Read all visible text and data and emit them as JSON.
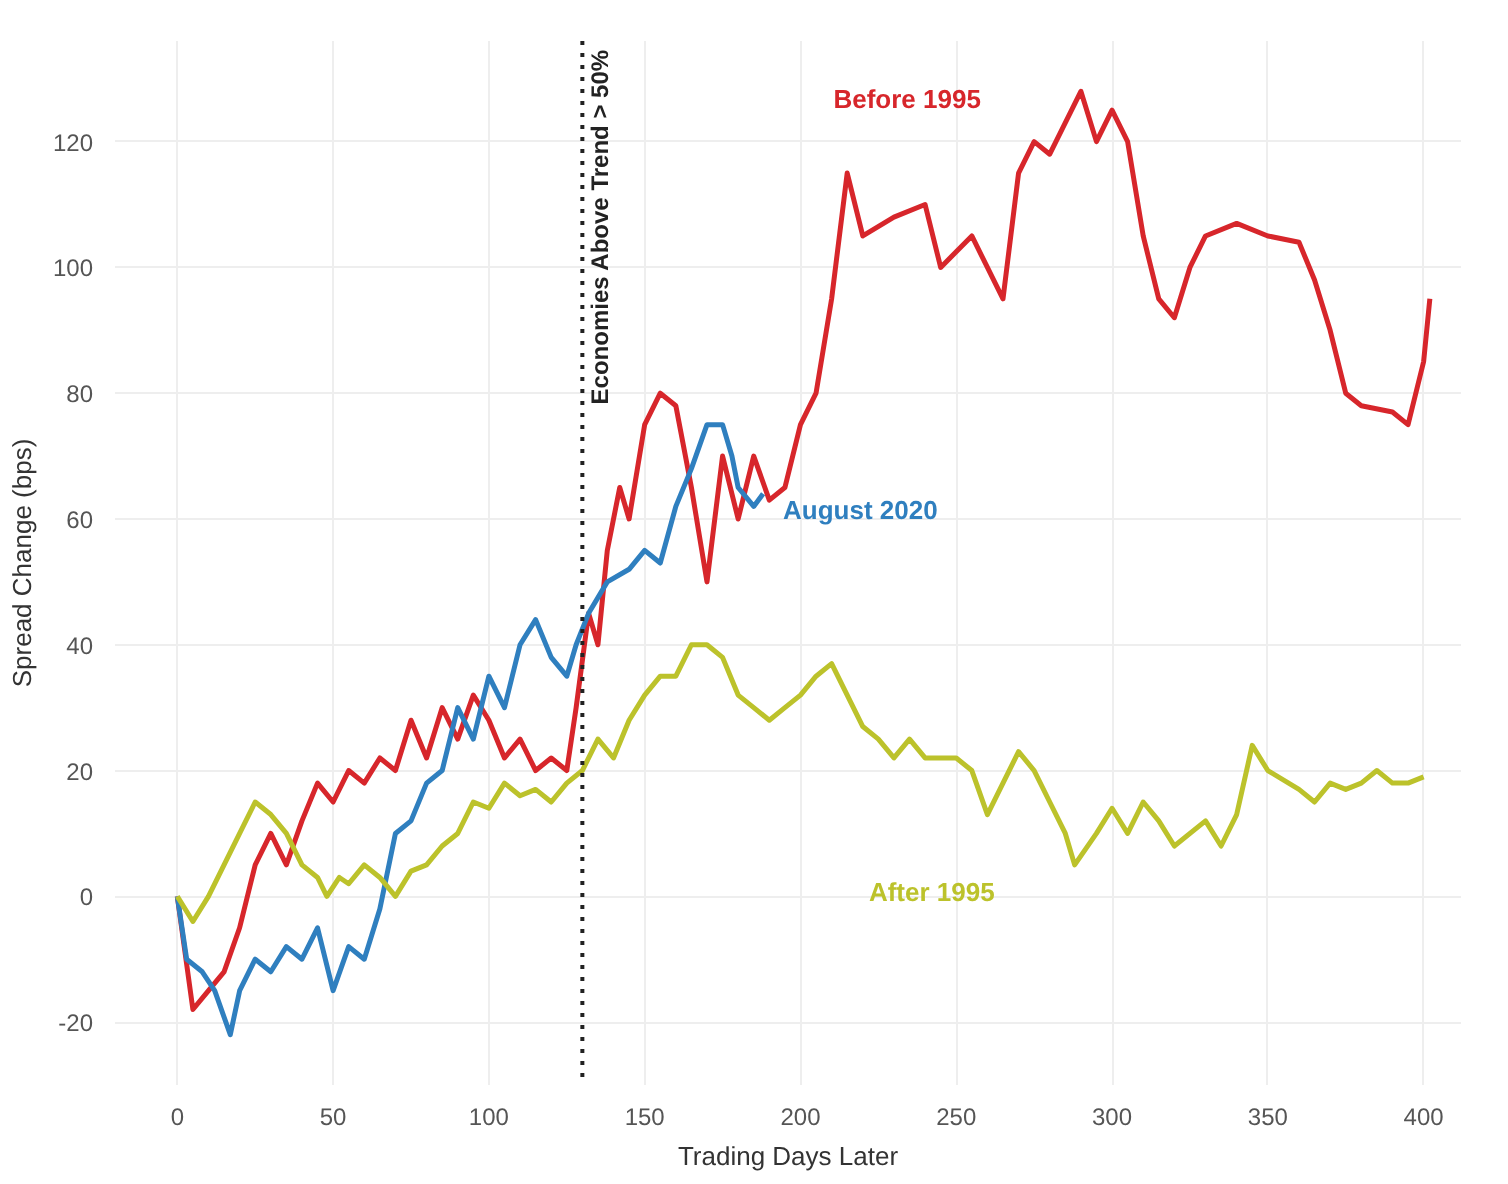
{
  "chart_data": {
    "type": "line",
    "xlabel": "Trading Days Later",
    "ylabel": "Spread Change (bps)",
    "xlim": [
      -20,
      412
    ],
    "ylim": [
      -30,
      136
    ],
    "xticks": [
      0,
      50,
      100,
      150,
      200,
      250,
      300,
      350,
      400
    ],
    "yticks": [
      -20,
      0,
      20,
      40,
      60,
      80,
      100,
      120
    ],
    "grid": true,
    "legend": false,
    "marker": "none",
    "line_style": "solid",
    "ref_lines": [
      {
        "axis": "x",
        "value": 130,
        "label": "Economies Above Trend > 50%",
        "color": "#222222",
        "line_style": "dotted"
      }
    ],
    "series": [
      {
        "name": "Before 1995",
        "color": "#d7262b",
        "x": [
          0,
          5,
          10,
          15,
          20,
          25,
          30,
          35,
          40,
          45,
          50,
          55,
          60,
          65,
          70,
          75,
          80,
          85,
          90,
          95,
          100,
          105,
          110,
          115,
          120,
          125,
          128,
          132,
          135,
          138,
          142,
          145,
          150,
          155,
          160,
          165,
          170,
          175,
          180,
          185,
          190,
          195,
          200,
          205,
          210,
          215,
          220,
          230,
          240,
          245,
          255,
          260,
          265,
          270,
          275,
          280,
          290,
          295,
          300,
          305,
          310,
          315,
          320,
          325,
          330,
          340,
          350,
          360,
          365,
          370,
          375,
          380,
          390,
          395,
          400,
          402
        ],
        "values": [
          0,
          -18,
          -15,
          -12,
          -5,
          5,
          10,
          5,
          12,
          18,
          15,
          20,
          18,
          22,
          20,
          28,
          22,
          30,
          25,
          32,
          28,
          22,
          25,
          20,
          22,
          20,
          30,
          45,
          40,
          55,
          65,
          60,
          75,
          80,
          78,
          65,
          50,
          70,
          60,
          70,
          63,
          65,
          75,
          80,
          95,
          115,
          105,
          108,
          110,
          100,
          105,
          100,
          95,
          115,
          120,
          118,
          128,
          120,
          125,
          120,
          105,
          95,
          92,
          100,
          105,
          107,
          105,
          104,
          98,
          90,
          80,
          78,
          77,
          75,
          85,
          95
        ]
      },
      {
        "name": "August 2020",
        "color": "#2f7fbf",
        "x": [
          0,
          3,
          8,
          12,
          17,
          20,
          25,
          30,
          35,
          40,
          45,
          50,
          55,
          60,
          65,
          70,
          75,
          80,
          85,
          90,
          95,
          100,
          105,
          110,
          115,
          120,
          125,
          128,
          132,
          138,
          145,
          150,
          155,
          160,
          165,
          170,
          175,
          178,
          180,
          185,
          188
        ],
        "values": [
          0,
          -10,
          -12,
          -15,
          -22,
          -15,
          -10,
          -12,
          -8,
          -10,
          -5,
          -15,
          -8,
          -10,
          -2,
          10,
          12,
          18,
          20,
          30,
          25,
          35,
          30,
          40,
          44,
          38,
          35,
          40,
          45,
          50,
          52,
          55,
          53,
          62,
          68,
          75,
          75,
          70,
          65,
          62,
          64
        ]
      },
      {
        "name": "After 1995",
        "color": "#bcc22b",
        "x": [
          0,
          5,
          10,
          15,
          20,
          25,
          30,
          35,
          40,
          45,
          48,
          52,
          55,
          60,
          65,
          70,
          75,
          80,
          85,
          90,
          95,
          100,
          105,
          110,
          115,
          120,
          125,
          130,
          135,
          140,
          145,
          150,
          155,
          160,
          165,
          170,
          175,
          180,
          185,
          190,
          195,
          200,
          205,
          210,
          215,
          220,
          225,
          230,
          235,
          240,
          250,
          255,
          260,
          265,
          270,
          275,
          280,
          285,
          288,
          295,
          300,
          305,
          310,
          315,
          320,
          330,
          335,
          340,
          345,
          350,
          360,
          365,
          370,
          375,
          380,
          385,
          390,
          395,
          400
        ],
        "values": [
          0,
          -4,
          0,
          5,
          10,
          15,
          13,
          10,
          5,
          3,
          0,
          3,
          2,
          5,
          3,
          0,
          4,
          5,
          8,
          10,
          15,
          14,
          18,
          16,
          17,
          15,
          18,
          20,
          25,
          22,
          28,
          32,
          35,
          35,
          40,
          40,
          38,
          32,
          30,
          28,
          30,
          32,
          35,
          37,
          32,
          27,
          25,
          22,
          25,
          22,
          22,
          20,
          13,
          18,
          23,
          20,
          15,
          10,
          5,
          10,
          14,
          10,
          15,
          12,
          8,
          12,
          8,
          13,
          24,
          20,
          17,
          15,
          18,
          17,
          18,
          20,
          18,
          18,
          19
        ]
      }
    ]
  }
}
